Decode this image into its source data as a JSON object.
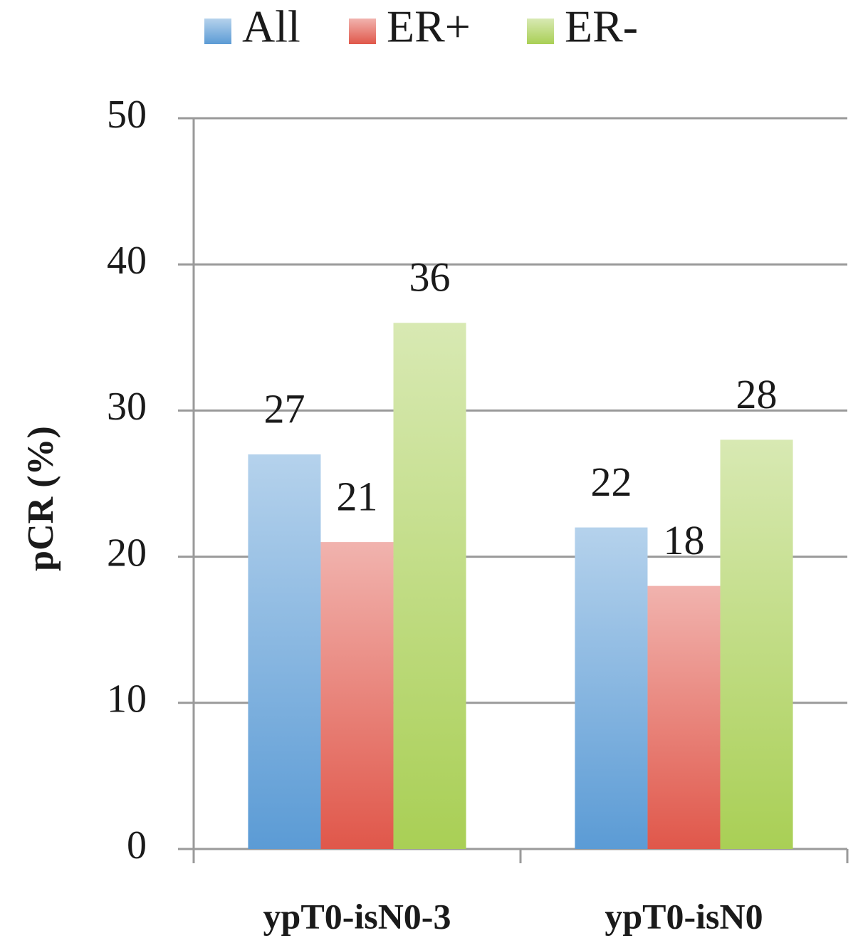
{
  "chart_data": {
    "type": "bar",
    "y_label": "pCR (%)",
    "categories": [
      "ypT0-isN0-3",
      "ypT0-isN0"
    ],
    "series": [
      {
        "name": "All",
        "color": "#5b9bd5",
        "values": [
          27,
          22
        ]
      },
      {
        "name": "ER+",
        "color": "#e0574a",
        "values": [
          21,
          18
        ]
      },
      {
        "name": "ER-",
        "color": "#a9cf55",
        "values": [
          36,
          28
        ]
      }
    ],
    "ylim": [
      0,
      50
    ],
    "yticks": [
      0,
      10,
      20,
      30,
      40,
      50
    ],
    "grid": true,
    "legend": "top"
  }
}
